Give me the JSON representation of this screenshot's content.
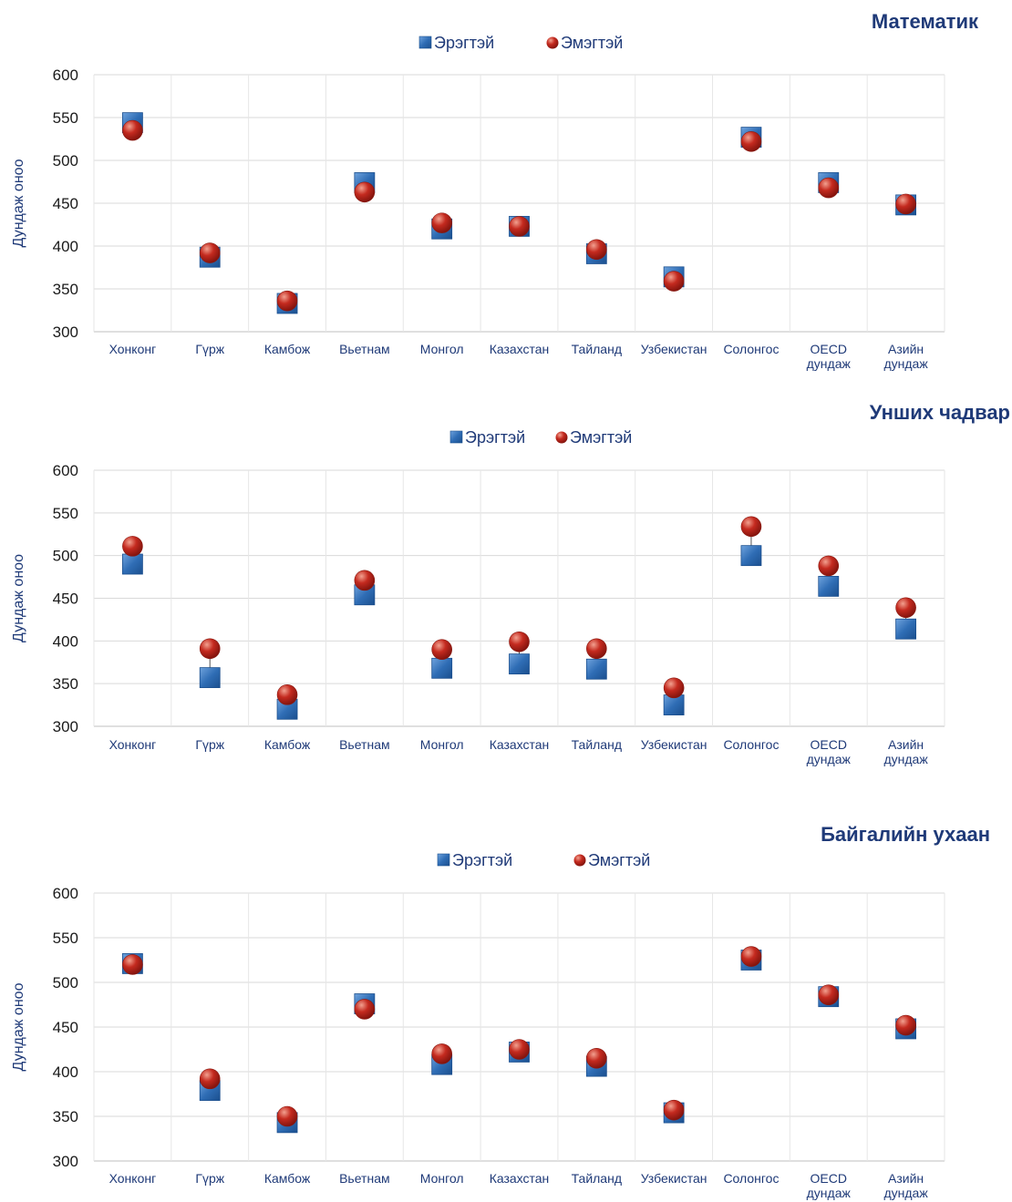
{
  "colors": {
    "male": "#2f6db5",
    "female": "#c42a1f",
    "grid": "#d9d9d9",
    "text": "#1f3a78"
  },
  "chart_data": [
    {
      "type": "scatter",
      "title": "Математик",
      "ylabel": "Дундаж оноо",
      "ylim": [
        300,
        600
      ],
      "yticks": [
        "600",
        "550",
        "500",
        "450",
        "400",
        "350",
        "300"
      ],
      "categories": [
        [
          "Хонконг"
        ],
        [
          "Гүрж"
        ],
        [
          "Камбож"
        ],
        [
          "Вьетнам"
        ],
        [
          "Монгол"
        ],
        [
          "Казахстан"
        ],
        [
          "Тайланд"
        ],
        [
          "Узбекистан"
        ],
        [
          "Солонгос"
        ],
        [
          "OECD",
          "дундаж"
        ],
        [
          "Азийн",
          "дундаж"
        ]
      ],
      "legend": "top",
      "series": [
        {
          "name": "Эрэгтэй",
          "marker": "square",
          "values": [
            544,
            387,
            333,
            474,
            420,
            423,
            391,
            364,
            527,
            474,
            448
          ]
        },
        {
          "name": "Эмэгтэй",
          "marker": "sphere",
          "values": [
            535,
            392,
            336,
            463,
            427,
            423,
            396,
            359,
            522,
            468,
            449
          ]
        }
      ]
    },
    {
      "type": "scatter",
      "title": "Унших чадвар",
      "ylabel": "Дундаж оноо",
      "ylim": [
        300,
        600
      ],
      "yticks": [
        "600",
        "550",
        "500",
        "450",
        "400",
        "350",
        "300"
      ],
      "categories": [
        [
          "Хонконг"
        ],
        [
          "Гүрж"
        ],
        [
          "Камбож"
        ],
        [
          "Вьетнам"
        ],
        [
          "Монгол"
        ],
        [
          "Казахстан"
        ],
        [
          "Тайланд"
        ],
        [
          "Узбекистан"
        ],
        [
          "Солонгос"
        ],
        [
          "OECD",
          "дундаж"
        ],
        [
          "Азийн",
          "дундаж"
        ]
      ],
      "legend": "top",
      "series": [
        {
          "name": "Эрэгтэй",
          "marker": "square",
          "values": [
            490,
            357,
            320,
            454,
            368,
            373,
            367,
            325,
            500,
            464,
            414
          ]
        },
        {
          "name": "Эмэгтэй",
          "marker": "sphere",
          "values": [
            511,
            391,
            337,
            471,
            390,
            399,
            391,
            345,
            534,
            488,
            439
          ]
        }
      ]
    },
    {
      "type": "scatter",
      "title": "Байгалийн ухаан",
      "ylabel": "Дундаж оноо",
      "ylim": [
        300,
        600
      ],
      "yticks": [
        "600",
        "550",
        "500",
        "450",
        "400",
        "350",
        "300"
      ],
      "categories": [
        [
          "Хонконг"
        ],
        [
          "Гүрж"
        ],
        [
          "Камбож"
        ],
        [
          "Вьетнам"
        ],
        [
          "Монгол"
        ],
        [
          "Казахстан"
        ],
        [
          "Тайланд"
        ],
        [
          "Узбекистан"
        ],
        [
          "Солонгос"
        ],
        [
          "OECD",
          "дундаж"
        ],
        [
          "Азийн",
          "дундаж"
        ]
      ],
      "legend": "top",
      "series": [
        {
          "name": "Эрэгтэй",
          "marker": "square",
          "values": [
            521,
            379,
            343,
            476,
            408,
            422,
            406,
            354,
            525,
            484,
            448
          ]
        },
        {
          "name": "Эмэгтэй",
          "marker": "sphere",
          "values": [
            520,
            392,
            350,
            470,
            420,
            425,
            415,
            357,
            529,
            486,
            452
          ]
        }
      ]
    }
  ]
}
